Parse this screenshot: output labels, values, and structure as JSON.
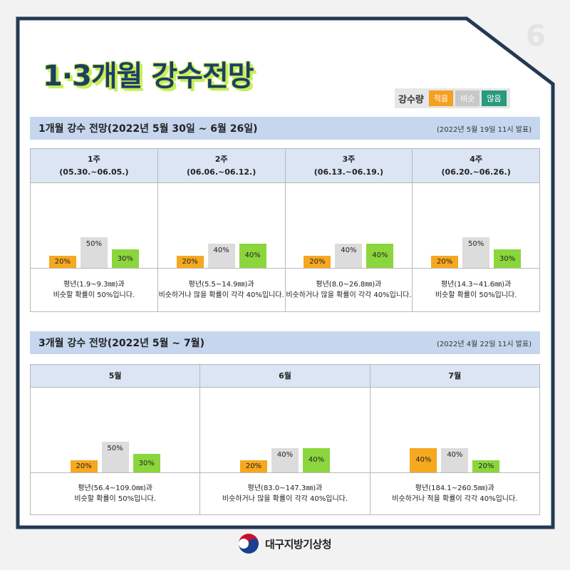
{
  "page_number": "6",
  "title": "1·3개월 강수전망",
  "legend": {
    "title": "강수량",
    "items": [
      {
        "label": "적음",
        "color": "#f4a020"
      },
      {
        "label": "비슷",
        "color": "#c8c8c8"
      },
      {
        "label": "많음",
        "color": "#2a9a7e"
      }
    ]
  },
  "section1": {
    "title": "1개월 강수 전망(2022년 5월 30일 ~ 6월 26일)",
    "note": "(2022년 5월 19일 11시 발표)"
  },
  "section2": {
    "title": "3개월 강수 전망(2022년 5월 ~ 7월)",
    "note": "(2022년 4월 22일 11시 발표)"
  },
  "footer": {
    "org_name": "대구지방기상청"
  },
  "chart_data": [
    {
      "type": "bar",
      "unit": "%",
      "ylim": [
        0,
        100
      ],
      "series_names": [
        "적음",
        "비슷",
        "많음"
      ],
      "series_colors": [
        "#f6a81f",
        "#dcdcdc",
        "#8bd63c"
      ],
      "groups": [
        {
          "head1": "1주",
          "head2": "(05.30.~06.05.)",
          "values": [
            20,
            50,
            30
          ],
          "desc1": "평년(1.9~9.3㎜)과",
          "desc2": "비슷할 확률이 50%입니다."
        },
        {
          "head1": "2주",
          "head2": "(06.06.~06.12.)",
          "values": [
            20,
            40,
            40
          ],
          "desc1": "평년(5.5~14.9㎜)과",
          "desc2": "비슷하거나 많을 확률이 각각 40%입니다."
        },
        {
          "head1": "3주",
          "head2": "(06.13.~06.19.)",
          "values": [
            20,
            40,
            40
          ],
          "desc1": "평년(8.0~26.8㎜)과",
          "desc2": "비슷하거나 많을 확률이 각각 40%입니다."
        },
        {
          "head1": "4주",
          "head2": "(06.20.~06.26.)",
          "values": [
            20,
            50,
            30
          ],
          "desc1": "평년(14.3~41.6㎜)과",
          "desc2": "비슷할 확률이 50%입니다."
        }
      ]
    },
    {
      "type": "bar",
      "unit": "%",
      "ylim": [
        0,
        100
      ],
      "series_names": [
        "적음",
        "비슷",
        "많음"
      ],
      "series_colors": [
        "#f6a81f",
        "#dcdcdc",
        "#8bd63c"
      ],
      "groups": [
        {
          "head1": "5월",
          "head2": "",
          "values": [
            20,
            50,
            30
          ],
          "desc1": "평년(56.4~109.0㎜)과",
          "desc2": "비슷할 확률이 50%입니다."
        },
        {
          "head1": "6월",
          "head2": "",
          "values": [
            20,
            40,
            40
          ],
          "desc1": "평년(83.0~147.3㎜)과",
          "desc2": "비슷하거나 많을 확률이 각각 40%입니다."
        },
        {
          "head1": "7월",
          "head2": "",
          "values": [
            40,
            40,
            20
          ],
          "desc1": "평년(184.1~260.5㎜)과",
          "desc2": "비슷하거나 적을 확률이 각각 40%입니다."
        }
      ]
    }
  ]
}
